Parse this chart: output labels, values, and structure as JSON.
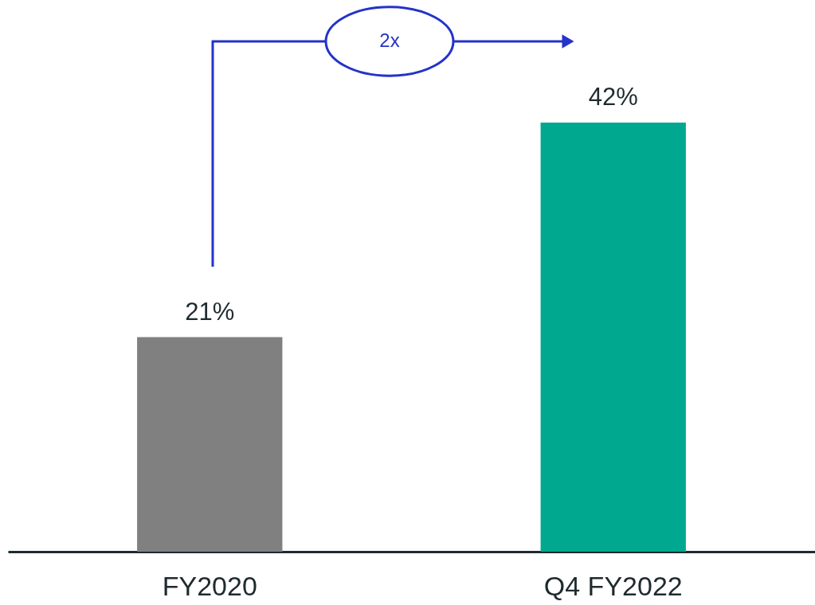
{
  "chart_data": {
    "type": "bar",
    "categories": [
      "FY2020",
      "Q4 FY2022"
    ],
    "values": [
      21,
      42
    ],
    "colors": [
      "#808080",
      "#00a88f"
    ],
    "value_labels": [
      "21%",
      "42%"
    ],
    "ylim": [
      0,
      54
    ],
    "annotations": [
      "2x"
    ],
    "tick_labels": "x",
    "grid": false
  }
}
